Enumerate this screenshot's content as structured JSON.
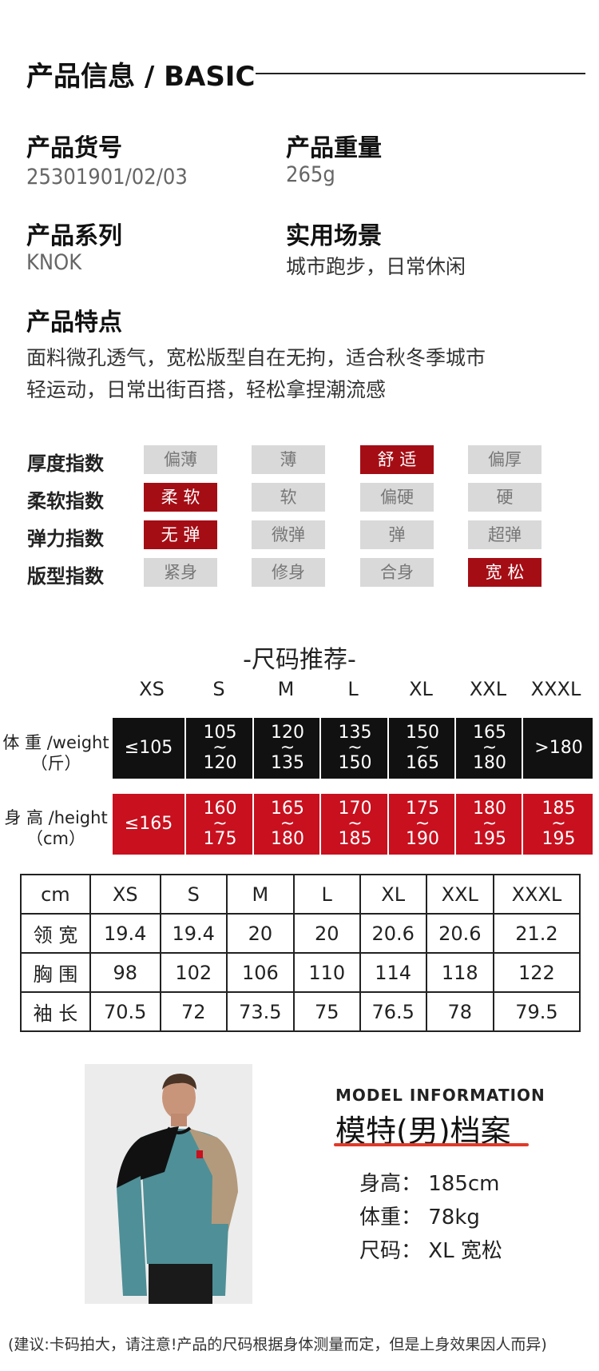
{
  "heading": {
    "title": "产品信息 / BASIC"
  },
  "info": {
    "sku_label": "产品货号",
    "sku_value": "25301901/02/03",
    "weight_label": "产品重量",
    "weight_value": "265g",
    "series_label": "产品系列",
    "series_value": "KNOK",
    "scene_label": "实用场景",
    "scene_value": "城市跑步，日常休闲",
    "feature_label": "产品特点",
    "feature_line1": "面料微孔透气，宽松版型自在无拘，适合秋冬季城市",
    "feature_line2": "轻运动，日常出街百搭，轻松拿捏潮流感"
  },
  "indices": [
    {
      "label": "厚度指数",
      "options": [
        "偏薄",
        "薄",
        "舒 适",
        "偏厚"
      ],
      "selected": 2
    },
    {
      "label": "柔软指数",
      "options": [
        "柔 软",
        "软",
        "偏硬",
        "硬"
      ],
      "selected": 0
    },
    {
      "label": "弹力指数",
      "options": [
        "无 弹",
        "微弹",
        "弹",
        "超弹"
      ],
      "selected": 0
    },
    {
      "label": "版型指数",
      "options": [
        "紧身",
        "修身",
        "合身",
        "宽 松"
      ],
      "selected": 3
    }
  ],
  "size_reco": {
    "title": "-尺码推荐-",
    "sizes": [
      "XS",
      "S",
      "M",
      "L",
      "XL",
      "XXL",
      "XXXL"
    ],
    "weight_label1": "体 重 /weight",
    "weight_label2": "（斤）",
    "weight_values": [
      {
        "top": "≤105",
        "mid": "",
        "bot": ""
      },
      {
        "top": "105",
        "mid": "~",
        "bot": "120"
      },
      {
        "top": "120",
        "mid": "~",
        "bot": "135"
      },
      {
        "top": "135",
        "mid": "~",
        "bot": "150"
      },
      {
        "top": "150",
        "mid": "~",
        "bot": "165"
      },
      {
        "top": "165",
        "mid": "~",
        "bot": "180"
      },
      {
        "top": ">180",
        "mid": "",
        "bot": ""
      }
    ],
    "height_label1": "身 高 /height",
    "height_label2": "（cm）",
    "height_values": [
      {
        "top": "≤165",
        "mid": "",
        "bot": ""
      },
      {
        "top": "160",
        "mid": "~",
        "bot": "175"
      },
      {
        "top": "165",
        "mid": "~",
        "bot": "180"
      },
      {
        "top": "170",
        "mid": "~",
        "bot": "185"
      },
      {
        "top": "175",
        "mid": "~",
        "bot": "190"
      },
      {
        "top": "180",
        "mid": "~",
        "bot": "195"
      },
      {
        "top": "185",
        "mid": "~",
        "bot": "195"
      }
    ],
    "colors": {
      "weight_band": "#111111",
      "height_band": "#c8101e"
    }
  },
  "size_table": {
    "header": [
      "cm",
      "XS",
      "S",
      "M",
      "L",
      "XL",
      "XXL",
      "XXXL"
    ],
    "rows": [
      [
        "领 宽",
        "19.4",
        "19.4",
        "20",
        "20",
        "20.6",
        "20.6",
        "21.2"
      ],
      [
        "胸 围",
        "98",
        "102",
        "106",
        "110",
        "114",
        "118",
        "122"
      ],
      [
        "袖 长",
        "70.5",
        "72",
        "73.5",
        "75",
        "76.5",
        "78",
        "79.5"
      ]
    ]
  },
  "model": {
    "title_en": "MODEL INFORMATION",
    "title_cn": "模特(男)档案",
    "height": "身高：  185cm",
    "weight": "体重：   78kg",
    "size": "尺码：  XL  宽松"
  },
  "note": "(建议:卡码拍大，请注意!产品的尺码根据身体测量而定，但是上身效果因人而异)"
}
